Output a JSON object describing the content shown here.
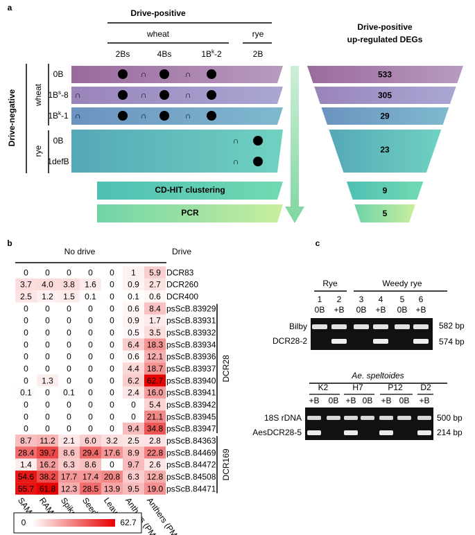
{
  "panel_a": {
    "label": "a",
    "drive_positive": "Drive-positive",
    "wheat": "wheat",
    "rye": "rye",
    "columns": [
      "2Bs",
      "4Bs",
      {
        "text": "1B",
        "sup": "k",
        "after": "-2"
      },
      "2B"
    ],
    "drive_negative": "Drive-negative",
    "row_groups": [
      "wheat",
      "rye"
    ],
    "rows": [
      "0B",
      {
        "text": "1B",
        "sup": "s",
        "after": "-8"
      },
      {
        "text": "1B",
        "sup": "k",
        "after": "-1"
      },
      "0B",
      "1defB"
    ],
    "intersection_symbol": "∩",
    "steps": [
      "CD-HIT clustering",
      "PCR"
    ],
    "degs_title": [
      "Drive-positive",
      "up-regulated DEGs"
    ],
    "degs_counts": [
      533,
      305,
      29,
      23,
      9,
      5
    ]
  },
  "panel_b": {
    "label": "b",
    "groups": [
      "No drive",
      "Drive"
    ],
    "columns": [
      "SAM",
      "RAM",
      "Spikes",
      "Seeds",
      "Leaves",
      "Anthers (PMII)",
      "Anthers (PMI)"
    ],
    "rows": [
      {
        "name": "DCR83",
        "values": [
          0,
          0,
          0,
          0,
          0,
          1,
          5.9
        ],
        "labels": [
          "0",
          "0",
          "0",
          "0",
          "0",
          "1",
          "5.9"
        ]
      },
      {
        "name": "DCR260",
        "values": [
          3.7,
          4.0,
          3.8,
          1.6,
          0,
          0.9,
          2.7
        ],
        "labels": [
          "3.7",
          "4.0",
          "3.8",
          "1.6",
          "0",
          "0.9",
          "2.7"
        ]
      },
      {
        "name": "DCR400",
        "values": [
          2.5,
          1.2,
          1.5,
          0.1,
          0,
          0.1,
          0.6
        ],
        "labels": [
          "2.5",
          "1.2",
          "1.5",
          "0.1",
          "0",
          "0.1",
          "0.6"
        ]
      },
      {
        "name": "psScB.83929",
        "values": [
          0,
          0,
          0,
          0,
          0,
          0.6,
          8.4
        ],
        "labels": [
          "0",
          "0",
          "0",
          "0",
          "0",
          "0.6",
          "8.4"
        ]
      },
      {
        "name": "psScB.83931",
        "values": [
          0,
          0,
          0,
          0,
          0,
          0.9,
          1.7
        ],
        "labels": [
          "0",
          "0",
          "0",
          "0",
          "0",
          "0.9",
          "1.7"
        ]
      },
      {
        "name": "psScB.83932",
        "values": [
          0,
          0,
          0,
          0,
          0,
          0.5,
          3.5
        ],
        "labels": [
          "0",
          "0",
          "0",
          "0",
          "0",
          "0.5",
          "3.5"
        ]
      },
      {
        "name": "psScB.83934",
        "values": [
          0,
          0,
          0,
          0,
          0,
          6.4,
          18.3
        ],
        "labels": [
          "0",
          "0",
          "0",
          "0",
          "0",
          "6.4",
          "18.3"
        ]
      },
      {
        "name": "psScB.83936",
        "values": [
          0,
          0,
          0,
          0,
          0,
          0.6,
          12.1
        ],
        "labels": [
          "0",
          "0",
          "0",
          "0",
          "0",
          "0.6",
          "12.1"
        ]
      },
      {
        "name": "psScB.83937",
        "values": [
          0,
          0,
          0,
          0,
          0,
          4.4,
          18.7
        ],
        "labels": [
          "0",
          "0",
          "0",
          "0",
          "0",
          "4.4",
          "18.7"
        ]
      },
      {
        "name": "psScB.83940",
        "values": [
          0,
          1.3,
          0,
          0,
          0,
          6.2,
          62.7
        ],
        "labels": [
          "0",
          "1.3",
          "0",
          "0",
          "0",
          "6.2",
          "62.7"
        ]
      },
      {
        "name": "psScB.83941",
        "values": [
          0.1,
          0,
          0.1,
          0,
          0,
          2.4,
          16.0
        ],
        "labels": [
          "0.1",
          "0",
          "0.1",
          "0",
          "0",
          "2.4",
          "16.0"
        ]
      },
      {
        "name": "psScB.83942",
        "values": [
          0,
          0,
          0,
          0,
          0,
          0,
          5.4
        ],
        "labels": [
          "0",
          "0",
          "0",
          "0",
          "0",
          "0",
          "5.4"
        ]
      },
      {
        "name": "psScB.83945",
        "values": [
          0,
          0,
          0,
          0,
          0,
          0,
          21.1
        ],
        "labels": [
          "0",
          "0",
          "0",
          "0",
          "0",
          "0",
          "21.1"
        ]
      },
      {
        "name": "psScB.83947",
        "values": [
          0,
          0,
          0,
          0,
          0,
          9.4,
          34.8
        ],
        "labels": [
          "0",
          "0",
          "0",
          "0",
          "0",
          "9.4",
          "34.8"
        ]
      },
      {
        "name": "psScB.84363",
        "values": [
          8.7,
          11.2,
          2.1,
          6.0,
          3.2,
          2.5,
          2.8
        ],
        "labels": [
          "8.7",
          "11.2",
          "2.1",
          "6.0",
          "3.2",
          "2.5",
          "2.8"
        ]
      },
      {
        "name": "psScB.84469",
        "values": [
          28.4,
          39.7,
          8.6,
          29.4,
          17.6,
          8.9,
          22.8
        ],
        "labels": [
          "28.4",
          "39.7",
          "8.6",
          "29.4",
          "17.6",
          "8.9",
          "22.8"
        ]
      },
      {
        "name": "psScB.84472",
        "values": [
          1.4,
          16.2,
          6.3,
          8.6,
          0,
          9.7,
          2.6
        ],
        "labels": [
          "1.4",
          "16.2",
          "6.3",
          "8.6",
          "0",
          "9.7",
          "2.6"
        ]
      },
      {
        "name": "psScB.84508",
        "values": [
          54.6,
          38.2,
          17.7,
          17.4,
          20.8,
          6.3,
          12.8
        ],
        "labels": [
          "54.6",
          "38.2",
          "17.7",
          "17.4",
          "20.8",
          "6.3",
          "12.8"
        ]
      },
      {
        "name": "psScB.84471",
        "values": [
          55.7,
          61.8,
          12.3,
          28.5,
          13.9,
          9.5,
          19.0
        ],
        "labels": [
          "55.7",
          "61.8",
          "12.3",
          "28.5",
          "13.9",
          "9.5",
          "19.0"
        ]
      }
    ],
    "gene_families": [
      "DCR28",
      "DCR169"
    ],
    "colorbar": {
      "min": 0,
      "max": 62.7
    }
  },
  "panel_c": {
    "label": "c",
    "gel_1": {
      "groups": [
        "Rye",
        "Weedy rye"
      ],
      "lanes": [
        "1",
        "2",
        "3",
        "4",
        "5",
        "6"
      ],
      "genotypes": [
        "0B",
        "+B",
        "0B",
        "+B",
        "0B",
        "+B"
      ],
      "markers": [
        "Bilby",
        "DCR28-2"
      ],
      "sizes": [
        "582 bp",
        "574 bp"
      ]
    },
    "gel_2": {
      "title": "Ae. speltoides",
      "accessions": [
        "K2",
        "H7",
        "P12",
        "D2"
      ],
      "genotypes": [
        "+B",
        "0B",
        "+B",
        "0B",
        "+B",
        "0B",
        "+B"
      ],
      "markers": [
        "18S rDNA",
        "AesDCR28-5"
      ],
      "sizes": [
        "500 bp",
        "214 bp"
      ]
    }
  }
}
